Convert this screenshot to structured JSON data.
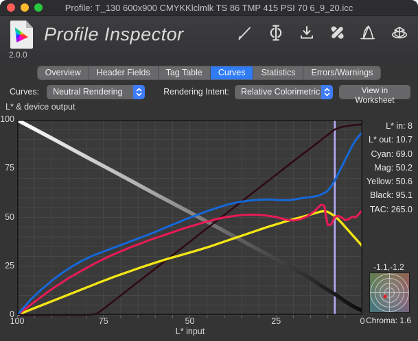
{
  "window": {
    "title": "Profile: T_130 600x900 CMYKKlclmlk TS 86 TMP 415 PSI 70 6_9_20.icc"
  },
  "header": {
    "app_title": "Profile Inspector",
    "version": "2.0.0",
    "toolbar_icons": [
      "pencil-icon",
      "measure-phi-icon",
      "download-icon",
      "bandage-icon",
      "gamut-curve-icon",
      "cube-3d-icon"
    ]
  },
  "colors": {
    "accent_blue": "#2f7cf6",
    "traffic": [
      "#ff5f58",
      "#febb2e",
      "#28c83f"
    ],
    "cursor": "#b6adf6"
  },
  "tabs": {
    "items": [
      "Overview",
      "Header Fields",
      "Tag Table",
      "Curves",
      "Statistics",
      "Errors/Warnings"
    ],
    "selected": "Curves"
  },
  "controls": {
    "curves_label": "Curves:",
    "curves_value": "Neutral Rendering",
    "intent_label": "Rendering Intent:",
    "intent_value": "Relative Colorimetric",
    "worksheet_button": "View in Worksheet"
  },
  "chart_data": {
    "type": "line",
    "title": "L* & device output",
    "xlabel": "L* input",
    "x_reversed": true,
    "xlim": [
      100,
      0
    ],
    "ylim": [
      0,
      100
    ],
    "grid_step": 5,
    "grid_on": true,
    "xticks": [
      100,
      75,
      50,
      25,
      0
    ],
    "yticks": [
      100,
      75,
      50,
      25,
      0
    ],
    "cursor": {
      "x": 8,
      "color": "#b6adf6"
    },
    "series": [
      {
        "name": "L* out",
        "color": "gradient",
        "width": 5.5,
        "gradient_stops": [
          [
            "0%",
            "#ffffff"
          ],
          [
            "35%",
            "#b2b2b2"
          ],
          [
            "65%",
            "#5e5e5e"
          ],
          [
            "90%",
            "#1e1e1e"
          ],
          [
            "100%",
            "#0c0c0c"
          ]
        ],
        "points": [
          [
            100,
            100
          ],
          [
            95,
            95.3
          ],
          [
            90,
            90.6
          ],
          [
            85,
            85.8
          ],
          [
            80,
            81
          ],
          [
            75,
            76.3
          ],
          [
            70,
            71.6
          ],
          [
            65,
            66.8
          ],
          [
            60,
            62
          ],
          [
            55,
            57.3
          ],
          [
            50,
            52.6
          ],
          [
            45,
            47.8
          ],
          [
            40,
            43
          ],
          [
            35,
            38.2
          ],
          [
            30,
            33.4
          ],
          [
            25,
            28.6
          ],
          [
            20,
            23.8
          ],
          [
            17,
            20.8
          ],
          [
            14,
            17.5
          ],
          [
            12,
            15
          ],
          [
            10,
            12.8
          ],
          [
            8,
            10.7
          ],
          [
            6,
            8.2
          ],
          [
            4,
            5.8
          ],
          [
            2,
            3.8
          ],
          [
            0,
            2.2
          ]
        ]
      },
      {
        "name": "Black",
        "color": "#2e0a15",
        "width": 2.6,
        "points": [
          [
            100,
            0
          ],
          [
            80,
            0
          ],
          [
            77,
            0.5
          ],
          [
            74,
            4.5
          ],
          [
            70,
            10
          ],
          [
            66,
            15.5
          ],
          [
            62,
            21
          ],
          [
            58,
            26.5
          ],
          [
            54,
            32
          ],
          [
            50,
            37.5
          ],
          [
            46,
            43
          ],
          [
            42,
            48.5
          ],
          [
            38,
            54
          ],
          [
            34,
            59.5
          ],
          [
            30,
            65
          ],
          [
            26,
            70.5
          ],
          [
            22,
            76
          ],
          [
            18,
            81.5
          ],
          [
            15,
            85.5
          ],
          [
            13,
            88.2
          ],
          [
            11,
            91
          ],
          [
            10,
            92.3
          ],
          [
            9,
            93.8
          ],
          [
            8,
            95.1
          ],
          [
            6,
            96.3
          ],
          [
            4,
            97
          ],
          [
            2,
            97.4
          ],
          [
            0,
            97.6
          ]
        ]
      },
      {
        "name": "Yellow",
        "color": "#f2e515",
        "width": 3.4,
        "points": [
          [
            100,
            0
          ],
          [
            96,
            2.8
          ],
          [
            92,
            5.6
          ],
          [
            88,
            8.4
          ],
          [
            84,
            11.2
          ],
          [
            80,
            14
          ],
          [
            76,
            16.8
          ],
          [
            72,
            19.5
          ],
          [
            68,
            22
          ],
          [
            64,
            24.5
          ],
          [
            60,
            26.8
          ],
          [
            56,
            29
          ],
          [
            52,
            31
          ],
          [
            48,
            33
          ],
          [
            44,
            35.2
          ],
          [
            40,
            37.6
          ],
          [
            36,
            40
          ],
          [
            32,
            42.4
          ],
          [
            28,
            44.8
          ],
          [
            24,
            47
          ],
          [
            21,
            48.6
          ],
          [
            18,
            50
          ],
          [
            16,
            51
          ],
          [
            14,
            52
          ],
          [
            12,
            53
          ],
          [
            11,
            53.2
          ],
          [
            10,
            52.8
          ],
          [
            9,
            51.8
          ],
          [
            8,
            50.6
          ],
          [
            7,
            49
          ],
          [
            6,
            47.2
          ],
          [
            5,
            45.2
          ],
          [
            4,
            43.2
          ],
          [
            3,
            41.2
          ],
          [
            2,
            39.2
          ],
          [
            1,
            37.2
          ],
          [
            0,
            35.2
          ]
        ]
      },
      {
        "name": "Mag",
        "color": "#ea1a56",
        "width": 3,
        "points": [
          [
            100,
            0
          ],
          [
            97,
            4
          ],
          [
            94,
            8
          ],
          [
            91,
            12
          ],
          [
            88,
            15.5
          ],
          [
            85,
            19
          ],
          [
            82,
            22
          ],
          [
            79,
            25
          ],
          [
            76,
            27.8
          ],
          [
            73,
            30.3
          ],
          [
            70,
            32.6
          ],
          [
            67,
            34.8
          ],
          [
            64,
            36.8
          ],
          [
            61,
            38.8
          ],
          [
            58,
            40.6
          ],
          [
            55,
            42.4
          ],
          [
            52,
            44.2
          ],
          [
            49,
            45.8
          ],
          [
            46,
            47.4
          ],
          [
            43,
            48.8
          ],
          [
            40,
            50
          ],
          [
            37,
            50.8
          ],
          [
            34,
            51.3
          ],
          [
            31,
            51.4
          ],
          [
            28,
            51
          ],
          [
            25,
            50.2
          ],
          [
            22,
            48.8
          ],
          [
            20,
            48.4
          ],
          [
            18,
            49
          ],
          [
            16,
            50.5
          ],
          [
            14,
            53
          ],
          [
            12,
            56.5
          ],
          [
            11,
            56
          ],
          [
            10.5,
            50
          ],
          [
            10,
            46
          ],
          [
            9,
            46.5
          ],
          [
            8,
            50.2
          ],
          [
            7,
            50.8
          ],
          [
            6,
            50
          ],
          [
            5,
            48.6
          ],
          [
            4,
            49
          ],
          [
            3,
            50.3
          ],
          [
            2,
            50
          ],
          [
            1,
            51.8
          ],
          [
            0,
            53.5
          ]
        ]
      },
      {
        "name": "Cyan",
        "color": "#1668d9",
        "width": 3,
        "points": [
          [
            100,
            0
          ],
          [
            98,
            4
          ],
          [
            96,
            8
          ],
          [
            93,
            13
          ],
          [
            90,
            17.5
          ],
          [
            87,
            21.5
          ],
          [
            84,
            25
          ],
          [
            81,
            28
          ],
          [
            78,
            30.5
          ],
          [
            75,
            32.5
          ],
          [
            72,
            34.5
          ],
          [
            69,
            36.5
          ],
          [
            66,
            38.5
          ],
          [
            63,
            40.5
          ],
          [
            60,
            42.5
          ],
          [
            57,
            44.8
          ],
          [
            54,
            47
          ],
          [
            51,
            49.2
          ],
          [
            48,
            51.2
          ],
          [
            45,
            53.2
          ],
          [
            42,
            55
          ],
          [
            39,
            56.6
          ],
          [
            36,
            57.8
          ],
          [
            33,
            58.6
          ],
          [
            30,
            59
          ],
          [
            27,
            59.2
          ],
          [
            24,
            58.8
          ],
          [
            21,
            58.8
          ],
          [
            19,
            59.4
          ],
          [
            17,
            60
          ],
          [
            15,
            60.4
          ],
          [
            13,
            61
          ],
          [
            11,
            62.5
          ],
          [
            10,
            63.8
          ],
          [
            9,
            66
          ],
          [
            8,
            69
          ],
          [
            7,
            72.5
          ],
          [
            6,
            76
          ],
          [
            5,
            79.5
          ],
          [
            4,
            83
          ],
          [
            3,
            86.5
          ],
          [
            2,
            89.5
          ],
          [
            1,
            91.8
          ],
          [
            0,
            93.5
          ]
        ]
      }
    ]
  },
  "readout": {
    "rows": [
      {
        "label": "L* in:",
        "value": "8"
      },
      {
        "label": "L* out:",
        "value": "10.7"
      },
      {
        "label": "Cyan:",
        "value": "69.0"
      },
      {
        "label": "Mag:",
        "value": "50.2"
      },
      {
        "label": "Yellow:",
        "value": "50.6"
      },
      {
        "label": "Black:",
        "value": "95.1"
      },
      {
        "label": "TAC:",
        "value": "265.0"
      }
    ]
  },
  "chroma": {
    "coords": "-1.1,-1.2",
    "label": "Chroma:",
    "value": "1.6"
  }
}
